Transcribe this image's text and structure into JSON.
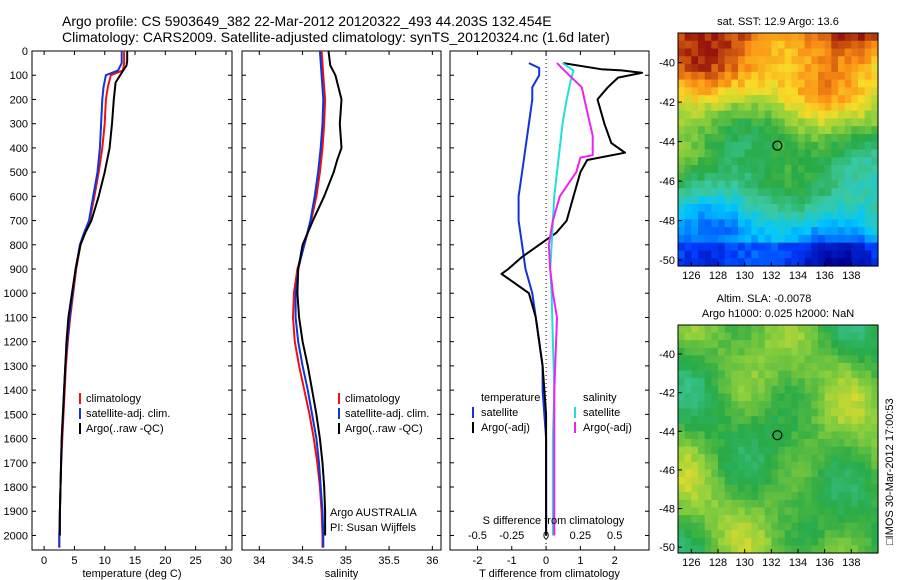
{
  "title": {
    "line1": "Argo profile: CS 5903649_382 22-Mar-2012 20120322_493 44.203S 132.454E",
    "line2": "Climatology: CARS2009. Satellite-adjusted climatology: synTS_20120324.nc (1.6d later)"
  },
  "side_label": "□IMOS 30-Mar-2012 17:00:53",
  "colors": {
    "red": "#ee1111",
    "blue": "#1133dd",
    "black": "#000000",
    "cyan": "#22dddd",
    "magenta": "#ee22ee"
  },
  "chart_data": [
    {
      "type": "line",
      "panel": "temperature",
      "xlabel": "temperature (deg C)",
      "xlim": [
        -2,
        31
      ],
      "ylim": [
        2060,
        0
      ],
      "xticks": [
        0,
        5,
        10,
        15,
        20,
        25,
        30
      ],
      "yticks": [
        0,
        100,
        200,
        300,
        400,
        500,
        600,
        700,
        800,
        900,
        1000,
        1100,
        1200,
        1300,
        1400,
        1500,
        1600,
        1700,
        1800,
        1900,
        2000
      ],
      "legend": [
        "climatology",
        "satellite-adj. clim.",
        "Argo(..raw -QC)"
      ],
      "series": [
        {
          "name": "climatology",
          "color": "red",
          "x": [
            13.2,
            13.2,
            13.0,
            11.0,
            10.5,
            10.2,
            10.0,
            9.6,
            9.0,
            8.3,
            7.5,
            6.7,
            6.0,
            5.3,
            4.8,
            4.3,
            3.9,
            3.6,
            3.4,
            3.2,
            3.0,
            2.8,
            2.7,
            2.6,
            2.5,
            2.5
          ],
          "y": [
            0,
            50,
            80,
            100,
            150,
            200,
            300,
            400,
            500,
            600,
            700,
            750,
            800,
            900,
            1000,
            1100,
            1200,
            1300,
            1400,
            1500,
            1600,
            1700,
            1800,
            1900,
            2000,
            2050
          ]
        },
        {
          "name": "satellite-adj. clim.",
          "color": "blue",
          "x": [
            12.8,
            12.8,
            12.2,
            10.2,
            9.8,
            9.6,
            9.4,
            9.2,
            8.8,
            8.1,
            7.4,
            6.6,
            5.9,
            5.2,
            4.7,
            4.2,
            3.8,
            3.5,
            3.3,
            3.1,
            2.9,
            2.8,
            2.7,
            2.6,
            2.5,
            2.5
          ],
          "y": [
            0,
            50,
            80,
            100,
            150,
            200,
            300,
            400,
            500,
            600,
            700,
            750,
            800,
            900,
            1000,
            1100,
            1200,
            1300,
            1400,
            1500,
            1600,
            1700,
            1800,
            1900,
            2000,
            2050
          ]
        },
        {
          "name": "Argo(..raw -QC)",
          "color": "black",
          "x": [
            13.7,
            13.7,
            13.6,
            12.8,
            11.8,
            11.5,
            11.2,
            10.8,
            10.0,
            9.0,
            7.8,
            6.8,
            6.0,
            5.2,
            4.6,
            4.0,
            3.7,
            3.5,
            3.3,
            3.1,
            2.9,
            2.8,
            2.7,
            2.6,
            2.6
          ],
          "y": [
            0,
            40,
            60,
            90,
            130,
            200,
            300,
            400,
            500,
            600,
            700,
            750,
            800,
            900,
            1000,
            1100,
            1200,
            1300,
            1400,
            1500,
            1600,
            1700,
            1800,
            1900,
            2000
          ]
        }
      ]
    },
    {
      "type": "line",
      "panel": "salinity",
      "xlabel": "salinity",
      "xlim": [
        33.8,
        36.1
      ],
      "ylim": [
        2060,
        0
      ],
      "xticks": [
        34,
        34.5,
        35,
        35.5,
        36
      ],
      "legend": [
        "climatology",
        "satellite-adj. clim.",
        "Argo(..raw -QC)"
      ],
      "annotation": [
        "Argo AUSTRALIA",
        "PI: Susan Wijffels"
      ],
      "series": [
        {
          "name": "climatology",
          "color": "red",
          "x": [
            34.72,
            34.74,
            34.76,
            34.75,
            34.73,
            34.7,
            34.66,
            34.6,
            34.52,
            34.44,
            34.4,
            34.39,
            34.41,
            34.46,
            34.52,
            34.58,
            34.63,
            34.67,
            34.7,
            34.72,
            34.73,
            34.73
          ],
          "y": [
            0,
            100,
            200,
            300,
            400,
            500,
            600,
            700,
            800,
            900,
            1000,
            1100,
            1200,
            1300,
            1400,
            1500,
            1600,
            1700,
            1800,
            1900,
            2000,
            2050
          ]
        },
        {
          "name": "satellite-adj. clim.",
          "color": "blue",
          "x": [
            34.7,
            34.72,
            34.74,
            34.73,
            34.71,
            34.68,
            34.64,
            34.59,
            34.52,
            34.45,
            34.42,
            34.42,
            34.45,
            34.5,
            34.56,
            34.61,
            34.66,
            34.69,
            34.71,
            34.73,
            34.74,
            34.74
          ],
          "y": [
            0,
            100,
            200,
            300,
            400,
            500,
            600,
            700,
            800,
            900,
            1000,
            1100,
            1200,
            1300,
            1400,
            1500,
            1600,
            1700,
            1800,
            1900,
            2000,
            2050
          ]
        },
        {
          "name": "Argo(..raw -QC)",
          "color": "black",
          "x": [
            34.8,
            34.82,
            34.88,
            34.95,
            34.93,
            34.95,
            34.9,
            34.86,
            34.75,
            34.62,
            34.5,
            34.45,
            34.44,
            34.46,
            34.5,
            34.56,
            34.61,
            34.66,
            34.7,
            34.73,
            34.75,
            34.76,
            34.76
          ],
          "y": [
            0,
            60,
            100,
            200,
            300,
            400,
            450,
            500,
            600,
            700,
            800,
            900,
            1000,
            1100,
            1200,
            1300,
            1400,
            1500,
            1600,
            1700,
            1800,
            1900,
            2000
          ]
        }
      ]
    },
    {
      "type": "line",
      "panel": "difference",
      "xlabel": "T difference from climatology",
      "xlabel_top": "S difference from climatology",
      "xlim": [
        -2.8,
        3.0
      ],
      "ylim": [
        2060,
        0
      ],
      "xticks": [
        -2,
        -1,
        0,
        1,
        2
      ],
      "s_ticks": [
        {
          "v": -0.5,
          "label": "-0.5"
        },
        {
          "v": -0.25,
          "label": "-0.25"
        },
        {
          "v": 0,
          "label": "0"
        },
        {
          "v": 0.25,
          "label": "0.25"
        },
        {
          "v": 0.5,
          "label": "0.5"
        }
      ],
      "s_scale": 4,
      "legend_temp": {
        "header": "temperature",
        "items": [
          "satellite",
          "Argo(-adj)"
        ]
      },
      "legend_sal": {
        "header": "salinity",
        "items": [
          "satellite",
          "Argo(-adj)"
        ]
      },
      "series": [
        {
          "name": "temperature satellite",
          "color": "blue",
          "x": [
            -0.5,
            -0.2,
            -0.2,
            -0.4,
            -0.4,
            -0.5,
            -0.6,
            -0.7,
            -0.8,
            -0.8,
            -0.7,
            -0.6,
            -0.4,
            -0.3,
            -0.2,
            -0.1,
            -0.1,
            0,
            0,
            0,
            0
          ],
          "y": [
            50,
            70,
            100,
            150,
            200,
            300,
            400,
            500,
            600,
            700,
            800,
            900,
            1000,
            1100,
            1200,
            1300,
            1400,
            1600,
            1800,
            1900,
            2000
          ]
        },
        {
          "name": "temperature Argo(-adj)",
          "color": "black",
          "x": [
            0.5,
            1.6,
            2.2,
            2.8,
            2.1,
            1.8,
            1.5,
            1.7,
            1.9,
            2.3,
            1.2,
            1.0,
            0.8,
            0.6,
            0.3,
            0,
            -0.7,
            -1.1,
            -1.3,
            -0.9,
            -0.5,
            -0.3,
            -0.2,
            -0.1,
            0,
            0,
            0
          ],
          "y": [
            50,
            75,
            80,
            90,
            110,
            150,
            200,
            300,
            380,
            420,
            450,
            500,
            600,
            700,
            750,
            780,
            850,
            900,
            920,
            960,
            1000,
            1100,
            1200,
            1300,
            1500,
            1800,
            2000
          ]
        },
        {
          "name": "salinity satellite",
          "color": "cyan",
          "x": [
            0.12,
            0.2,
            0.18,
            0.15,
            0.12,
            0.1,
            0.08,
            0.06,
            0.05,
            0.04,
            0.03,
            0.04,
            0.05,
            0.06,
            0.05,
            0.05,
            0.05
          ],
          "y": [
            50,
            80,
            120,
            200,
            300,
            400,
            500,
            600,
            700,
            800,
            900,
            1000,
            1200,
            1400,
            1600,
            1800,
            2000
          ]
        },
        {
          "name": "salinity Argo(-adj)",
          "color": "magenta",
          "x": [
            0.08,
            0.15,
            0.26,
            0.3,
            0.34,
            0.34,
            0.25,
            0.22,
            0.1,
            0.05,
            0.02,
            0.03,
            0.05,
            0.08,
            0.06,
            0.06
          ],
          "y": [
            50,
            90,
            150,
            250,
            350,
            430,
            440,
            500,
            600,
            700,
            800,
            900,
            1000,
            1100,
            1400,
            2000
          ]
        }
      ]
    },
    {
      "type": "heatmap",
      "panel": "sst_map",
      "title": "sat. SST: 12.9 Argo: 13.6",
      "xlim": [
        125,
        140
      ],
      "ylim": [
        -50.3,
        -38.5
      ],
      "xticks": [
        126,
        128,
        130,
        132,
        134,
        136,
        138
      ],
      "yticks": [
        -40,
        -42,
        -44,
        -46,
        -48,
        -50
      ],
      "argo_position": {
        "lon": 132.454,
        "lat": -44.203
      }
    },
    {
      "type": "heatmap",
      "panel": "sla_map",
      "title_lines": [
        "Altim. SLA: -0.0078",
        "Argo h1000: 0.025 h2000: NaN"
      ],
      "xlim": [
        125,
        140
      ],
      "ylim": [
        -50.3,
        -38.5
      ],
      "xticks": [
        126,
        128,
        130,
        132,
        134,
        136,
        138
      ],
      "yticks": [
        -40,
        -42,
        -44,
        -46,
        -48,
        -50
      ],
      "argo_position": {
        "lon": 132.454,
        "lat": -44.203
      }
    }
  ]
}
